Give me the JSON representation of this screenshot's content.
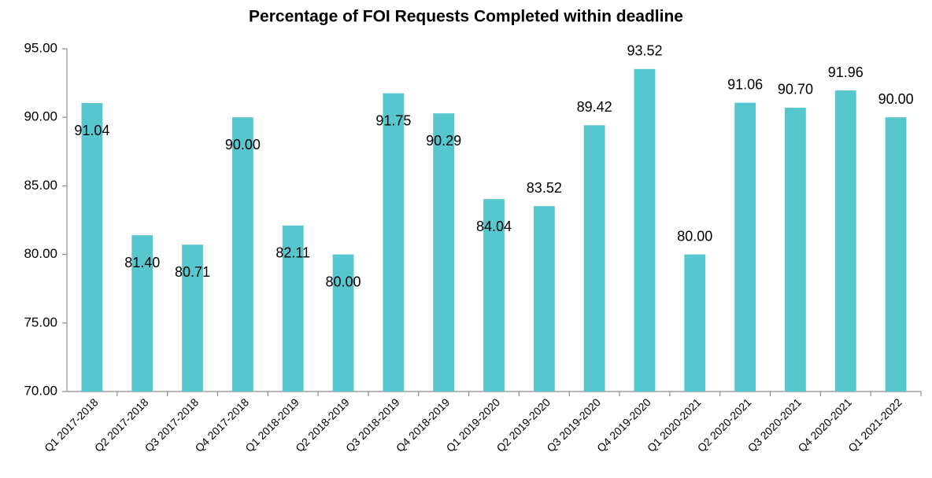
{
  "chart_data": {
    "type": "bar",
    "title": "Percentage of FOI Requests Completed within deadline",
    "categories": [
      "Q1 2017-2018",
      "Q2 2017-2018",
      "Q3 2017-2018",
      "Q4 2017-2018",
      "Q1 2018-2019",
      "Q2 2018-2019",
      "Q3 2018-2019",
      "Q4 2018-2019",
      "Q1 2019-2020",
      "Q2 2019-2020",
      "Q3 2019-2020",
      "Q4 2019-2020",
      "Q1 2020-2021",
      "Q2 2020-2021",
      "Q3 2020-2021",
      "Q4 2020-2021",
      "Q1 2021-2022"
    ],
    "values": [
      91.04,
      81.4,
      80.71,
      90,
      82.11,
      80,
      91.75,
      90.29,
      84.04,
      83.52,
      89.42,
      93.52,
      80,
      91.06,
      90.7,
      91.96,
      90
    ],
    "value_labels": [
      "91.04",
      "81.40",
      "80.71",
      "90.00",
      "82.11",
      "80.00",
      "91.75",
      "90.29",
      "84.04",
      "83.52",
      "89.42",
      "93.52",
      "80.00",
      "91.06",
      "90.70",
      "91.96",
      "90.00"
    ],
    "color": "#56c7cf",
    "ylim": [
      70,
      95
    ],
    "yticks": [
      {
        "value": 70,
        "label": "70.00"
      },
      {
        "value": 75,
        "label": "75.00"
      },
      {
        "value": 80,
        "label": "80.00"
      },
      {
        "value": 85,
        "label": "85.00"
      },
      {
        "value": 90,
        "label": "90.00"
      },
      {
        "value": 95,
        "label": "95.00"
      }
    ],
    "grid": false
  }
}
